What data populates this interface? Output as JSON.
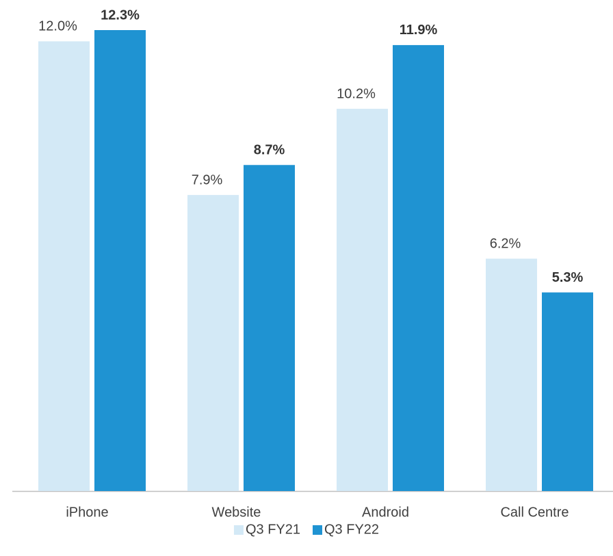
{
  "chart_data": {
    "type": "bar",
    "categories": [
      "iPhone",
      "Website",
      "Android",
      "Call Centre"
    ],
    "series": [
      {
        "name": "Q3 FY21",
        "color": "#d3e9f6",
        "values": [
          12.0,
          7.9,
          10.2,
          6.2
        ],
        "value_labels": [
          "12.0%",
          "7.9%",
          "10.2%",
          "6.2%"
        ]
      },
      {
        "name": "Q3 FY22",
        "color": "#1f93d2",
        "values": [
          12.3,
          8.7,
          11.9,
          5.3
        ],
        "value_labels": [
          "12.3%",
          "8.7%",
          "11.9%",
          "5.3%"
        ]
      }
    ],
    "legend": "bottom"
  }
}
